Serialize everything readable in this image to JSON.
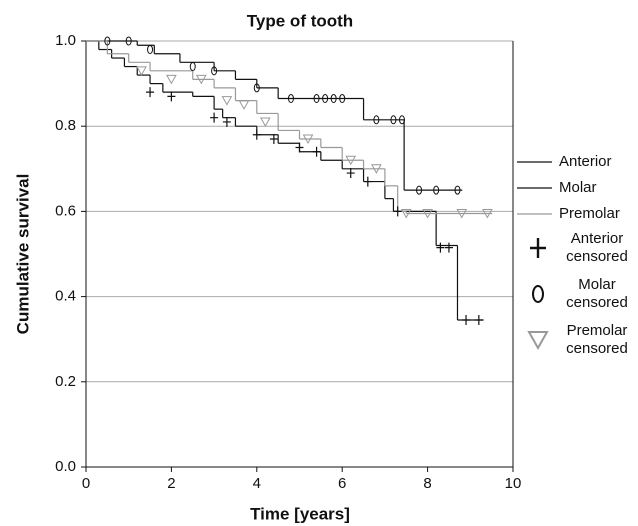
{
  "chart_data": {
    "type": "step",
    "title": "Type of tooth",
    "x_label": "Time [years]",
    "y_label": "Cumulative survival",
    "xlim": [
      0,
      10
    ],
    "ylim": [
      0,
      1
    ],
    "xticks": [
      0,
      2,
      4,
      6,
      8,
      10
    ],
    "yticks": [
      {
        "value": 0,
        "label": "0.0"
      },
      {
        "value": 0.2,
        "label": "0.2"
      },
      {
        "value": 0.4,
        "label": "0.4"
      },
      {
        "value": 0.6,
        "label": "0.6"
      },
      {
        "value": 0.8,
        "label": "0.8"
      },
      {
        "value": 1,
        "label": "1.0"
      }
    ],
    "grid": true,
    "series": [
      {
        "name": "Anterior",
        "color": "#111111",
        "marker": "line",
        "x": [
          0,
          0.3,
          0.6,
          0.9,
          1.2,
          1.5,
          1.8,
          2.5,
          3.0,
          3.2,
          3.5,
          4.0,
          4.5,
          5.0,
          5.5,
          6.0,
          6.5,
          7.0,
          7.2,
          8.2,
          8.7,
          9.3
        ],
        "values": [
          1.0,
          0.98,
          0.96,
          0.94,
          0.92,
          0.9,
          0.88,
          0.87,
          0.84,
          0.82,
          0.8,
          0.78,
          0.76,
          0.74,
          0.72,
          0.7,
          0.67,
          0.63,
          0.6,
          0.52,
          0.345,
          0.345
        ]
      },
      {
        "name": "Molar",
        "color": "#111111",
        "marker": "line",
        "x": [
          0,
          1.2,
          1.6,
          2.2,
          3.0,
          3.5,
          4.0,
          4.5,
          6.5,
          7.45,
          8.8
        ],
        "values": [
          1.0,
          0.99,
          0.97,
          0.95,
          0.93,
          0.91,
          0.89,
          0.865,
          0.815,
          0.65,
          0.65
        ]
      },
      {
        "name": "Premolar",
        "color": "#999999",
        "marker": "line",
        "x": [
          0,
          0.5,
          1.0,
          1.5,
          2.5,
          3.0,
          3.5,
          4.0,
          4.5,
          5.0,
          5.5,
          6.0,
          6.5,
          7.0,
          7.3,
          7.5,
          9.5
        ],
        "values": [
          1.0,
          0.97,
          0.95,
          0.93,
          0.91,
          0.89,
          0.86,
          0.83,
          0.79,
          0.77,
          0.75,
          0.72,
          0.7,
          0.66,
          0.6,
          0.595,
          0.595
        ]
      },
      {
        "name": "Anterior censored",
        "color": "#111111",
        "marker": "plus",
        "x": [
          1.5,
          2.0,
          3.0,
          3.3,
          4.0,
          4.4,
          5.0,
          5.4,
          6.2,
          6.6,
          7.3,
          8.3,
          8.5,
          8.9,
          9.2
        ],
        "values": [
          0.88,
          0.87,
          0.82,
          0.81,
          0.78,
          0.77,
          0.75,
          0.74,
          0.69,
          0.67,
          0.6,
          0.515,
          0.515,
          0.345,
          0.345
        ]
      },
      {
        "name": "Molar censored",
        "color": "#111111",
        "marker": "ellipse",
        "x": [
          0.5,
          1.0,
          1.5,
          2.5,
          3.0,
          4.0,
          4.8,
          5.4,
          5.6,
          5.8,
          6.0,
          6.8,
          7.2,
          7.4,
          7.8,
          8.2,
          8.7
        ],
        "values": [
          1.0,
          1.0,
          0.98,
          0.94,
          0.93,
          0.89,
          0.865,
          0.865,
          0.865,
          0.865,
          0.865,
          0.815,
          0.815,
          0.815,
          0.65,
          0.65,
          0.65
        ]
      },
      {
        "name": "Premolar censored",
        "color": "#999999",
        "marker": "triangle",
        "x": [
          1.3,
          2.0,
          2.7,
          3.3,
          3.7,
          4.2,
          5.2,
          6.2,
          6.8,
          7.5,
          8.0,
          8.8,
          9.4
        ],
        "values": [
          0.93,
          0.91,
          0.91,
          0.86,
          0.85,
          0.81,
          0.77,
          0.72,
          0.7,
          0.595,
          0.595,
          0.595,
          0.595
        ]
      }
    ]
  }
}
